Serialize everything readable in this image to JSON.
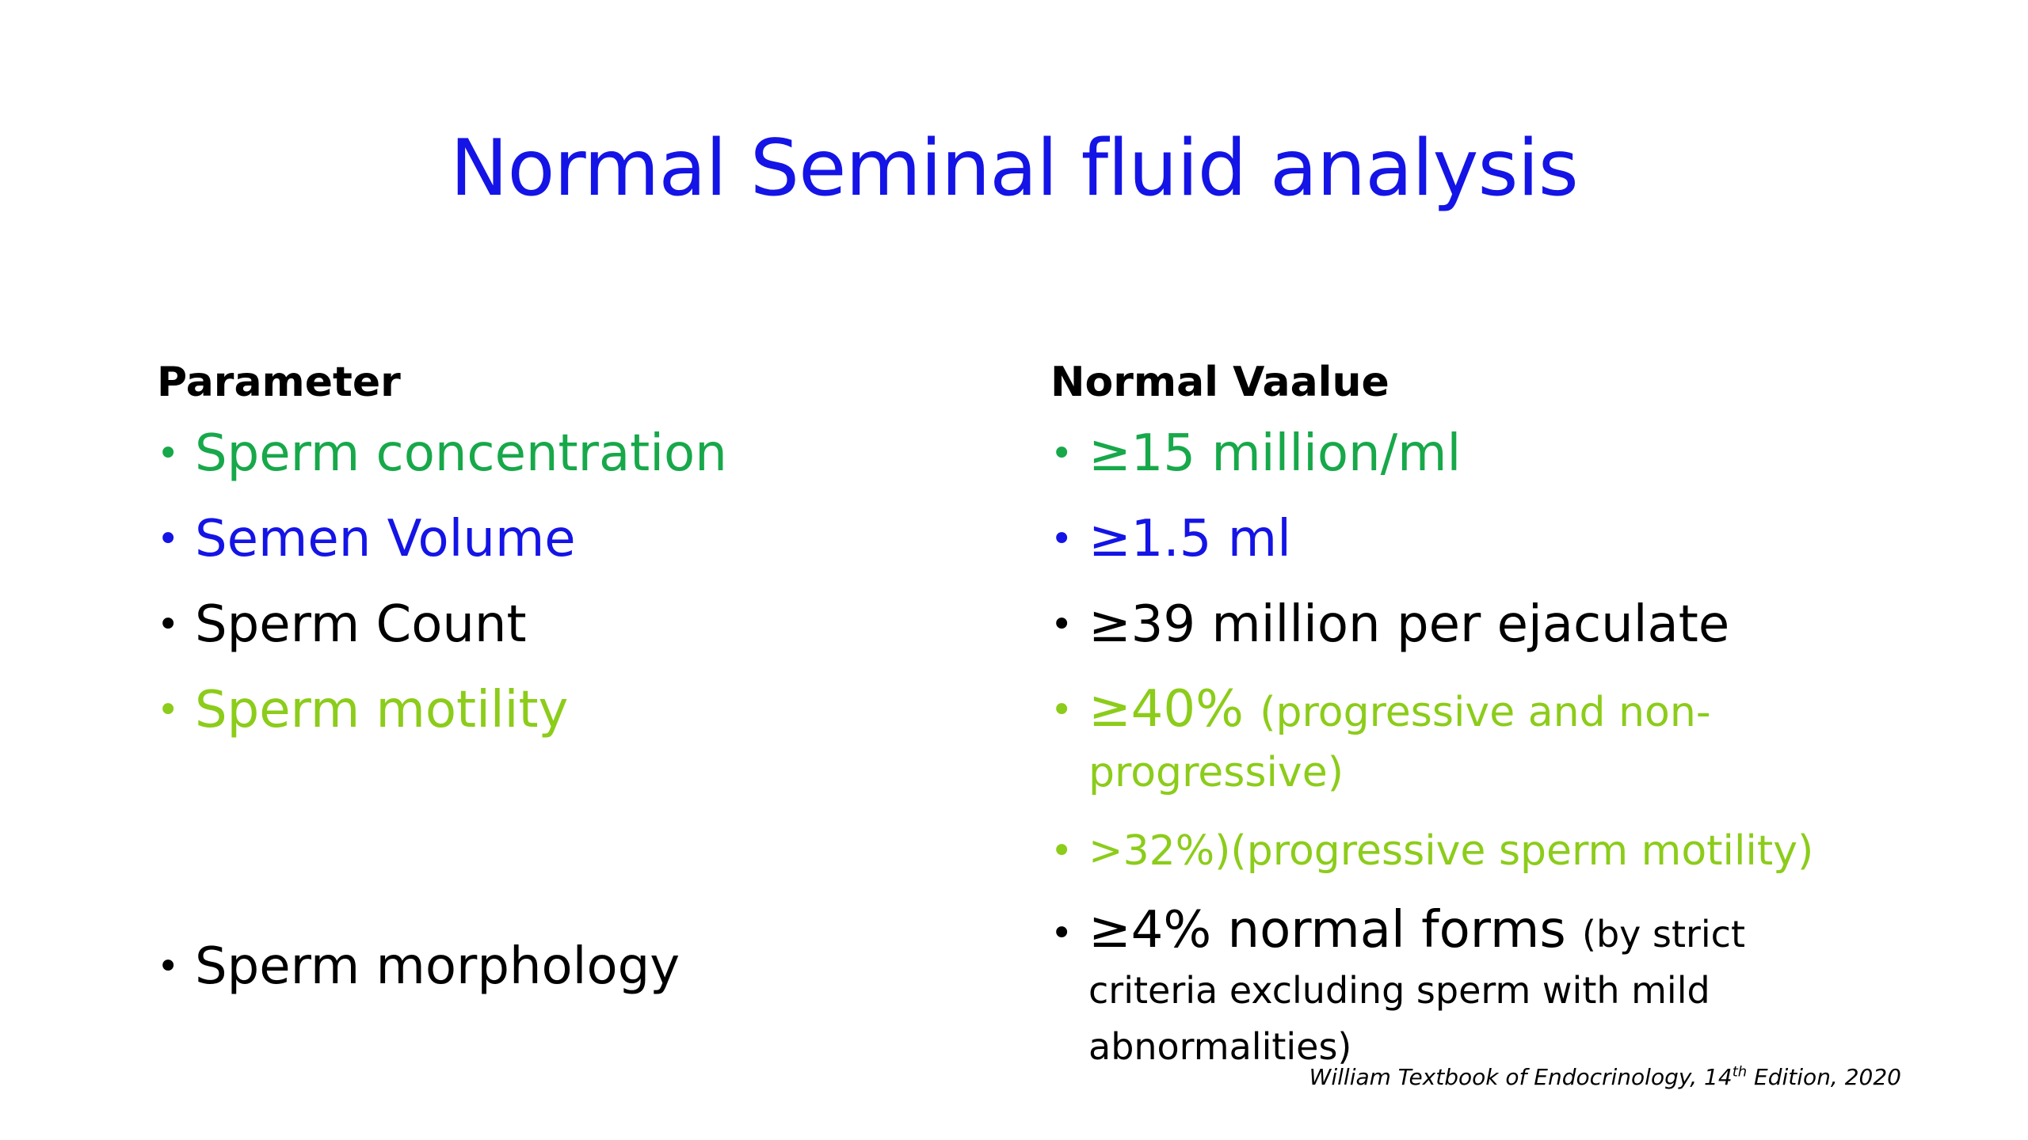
{
  "slide": {
    "title": "Normal Seminal fluid analysis",
    "title_color": "#1414e6"
  },
  "left": {
    "header": "Parameter",
    "items": [
      {
        "label": "Sperm concentration",
        "color": "#17a84a"
      },
      {
        "label": "Semen Volume",
        "color": "#1414e6"
      },
      {
        "label": "Sperm Count",
        "color": "#000000"
      },
      {
        "label": "Sperm motility",
        "color": "#8ccc1a"
      },
      {
        "label": "Sperm morphology",
        "color": "#000000"
      }
    ]
  },
  "right": {
    "header": "Normal Vaalue",
    "items": [
      {
        "main": "≥15 million/ml",
        "detail": "",
        "color": "#17a84a"
      },
      {
        "main": "≥1.5 ml",
        "detail": "",
        "color": "#1414e6"
      },
      {
        "main": "≥39 million per ejaculate",
        "detail": "",
        "color": "#000000"
      },
      {
        "main": "≥40%",
        "detail": "(progressive and non-progressive)",
        "color": "#8ccc1a"
      },
      {
        "main": ">32%)(progressive sperm motility)",
        "detail": "",
        "color": "#8ccc1a"
      },
      {
        "main": "≥4% normal forms",
        "detail": "(by strict criteria excluding sperm with mild abnormalities)",
        "color": "#000000"
      }
    ]
  },
  "citation": {
    "text": "William Textbook of Endocrinology, 14",
    "sup": "th",
    "tail": " Edition, 2020"
  },
  "bullet_glyph": "•"
}
